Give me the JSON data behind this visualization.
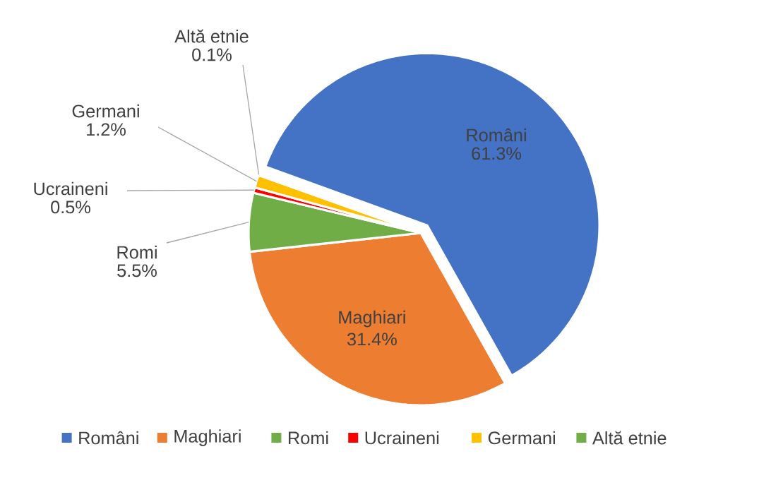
{
  "chart_data": {
    "type": "pie",
    "categories": [
      "Români",
      "Maghiari",
      "Romi",
      "Ucraineni",
      "Germani",
      "Altă etnie"
    ],
    "values": [
      61.3,
      31.4,
      5.5,
      0.5,
      1.2,
      0.1
    ],
    "value_labels": [
      "61.3%",
      "31.4%",
      "5.5%",
      "0.5%",
      "1.2%",
      "0.1%"
    ],
    "colors": [
      "#4472c4",
      "#ed7d31",
      "#70ad47",
      "#ff0000",
      "#ffc000",
      "#70ad47"
    ],
    "legend": "bottom"
  }
}
